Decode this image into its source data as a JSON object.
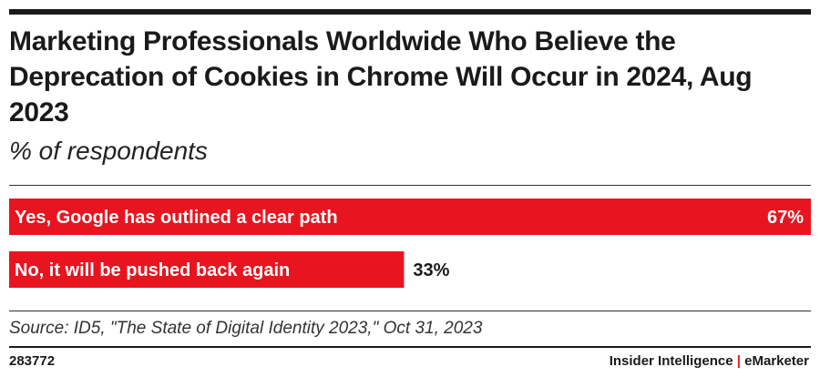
{
  "colors": {
    "bar": "#e8141f",
    "text_dark": "#1a1a1a",
    "text_light": "#ffffff"
  },
  "footer": {
    "chart_id": "283772",
    "brand_left": "Insider Intelligence",
    "separator": "|",
    "brand_right": "eMarketer"
  },
  "chart_data": {
    "type": "bar",
    "orientation": "horizontal",
    "title": "Marketing Professionals Worldwide Who Believe the Deprecation of Cookies in Chrome Will Occur in 2024, Aug 2023",
    "subtitle": "% of respondents",
    "categories": [
      "Yes, Google has outlined a clear path",
      "No, it will be pushed back again"
    ],
    "values": [
      67,
      33
    ],
    "value_suffix": "%",
    "xlim": [
      0,
      67
    ],
    "source": "Source: ID5, \"The State of Digital Identity 2023,\" Oct 31, 2023",
    "xlabel": "",
    "ylabel": ""
  }
}
